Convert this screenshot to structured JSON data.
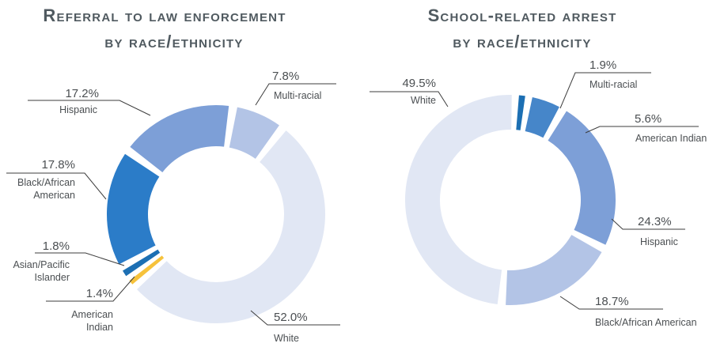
{
  "chart_data": [
    {
      "type": "pie",
      "title_lines": [
        "Referral to law enforcement",
        "by race/ethnicity"
      ],
      "slices": [
        {
          "label": "Multi-racial",
          "value": 7.8,
          "pct": "7.8%",
          "color": "#b3c4e6"
        },
        {
          "label": "White",
          "value": 52.0,
          "pct": "52.0%",
          "color": "#e1e7f4"
        },
        {
          "label": "American Indian",
          "value": 1.4,
          "pct": "1.4%",
          "color": "#f6c23b"
        },
        {
          "label": "Asian/Pacific Islander",
          "value": 1.8,
          "pct": "1.8%",
          "color": "#1c6fb3"
        },
        {
          "label": "Black/African American",
          "value": 17.8,
          "pct": "17.8%",
          "color": "#2b7cc8"
        },
        {
          "label": "Hispanic",
          "value": 17.2,
          "pct": "17.2%",
          "color": "#7d9fd7"
        }
      ]
    },
    {
      "type": "pie",
      "title_lines": [
        "School-related arrest",
        "by race/ethnicity"
      ],
      "slices": [
        {
          "label": "Multi-racial",
          "value": 1.9,
          "pct": "1.9%",
          "color": "#1c6fb3"
        },
        {
          "label": "American Indian",
          "value": 5.6,
          "pct": "5.6%",
          "color": "#4686c9"
        },
        {
          "label": "Hispanic",
          "value": 24.3,
          "pct": "24.3%",
          "color": "#7d9fd7"
        },
        {
          "label": "Black/African American",
          "value": 18.7,
          "pct": "18.7%",
          "color": "#b3c4e6"
        },
        {
          "label": "White",
          "value": 49.5,
          "pct": "49.5%",
          "color": "#e1e7f4"
        }
      ]
    }
  ]
}
